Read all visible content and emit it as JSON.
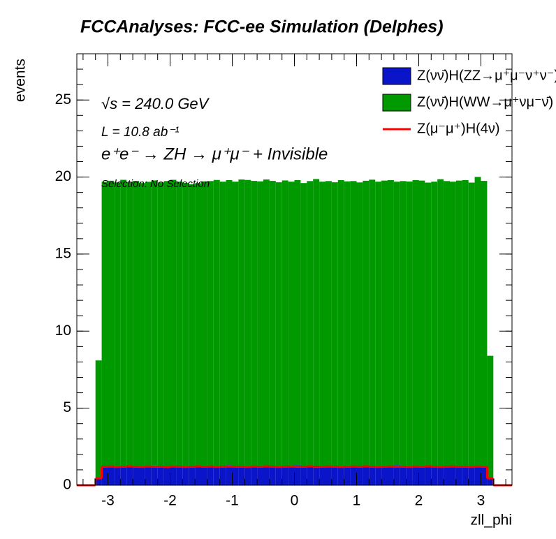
{
  "chart_data": {
    "type": "histogram",
    "title": "FCCAnalyses: FCC-ee Simulation (Delphes)",
    "xlabel": "zll_phi",
    "ylabel": "events",
    "annotations": [
      "√s = 240.0 GeV",
      "L = 10.8 ab⁻¹",
      "e⁺e⁻ → ZH → μ⁺μ⁻ + Invisible",
      "Selection: No Selection"
    ],
    "bins": [
      -3.5,
      -3.4,
      -3.3,
      -3.2,
      -3.1,
      -3.0,
      -2.9,
      -2.8,
      -2.7,
      -2.6,
      -2.5,
      -2.4,
      -2.3,
      -2.2,
      -2.1,
      -2.0,
      -1.9,
      -1.8,
      -1.7,
      -1.6,
      -1.5,
      -1.4,
      -1.3,
      -1.2,
      -1.1,
      -1.0,
      -0.9,
      -0.8,
      -0.7,
      -0.6,
      -0.5,
      -0.4,
      -0.3,
      -0.2,
      -0.1,
      0.0,
      0.1,
      0.2,
      0.3,
      0.4,
      0.5,
      0.6,
      0.7,
      0.8,
      0.9,
      1.0,
      1.1,
      1.2,
      1.3,
      1.4,
      1.5,
      1.6,
      1.7,
      1.8,
      1.9,
      2.0,
      2.1,
      2.2,
      2.3,
      2.4,
      2.5,
      2.6,
      2.7,
      2.8,
      2.9,
      3.0,
      3.1,
      3.2,
      3.3,
      3.4,
      3.5
    ],
    "series": [
      {
        "name": "Z(νν̄)H(ZZ→μ⁺μ⁻ν⁺ν⁻)",
        "color": "#0a14c8",
        "histtype": "stacked",
        "values": [
          0,
          0,
          0,
          0.5,
          1.24,
          1.26,
          1.25,
          1.27,
          1.23,
          1.25,
          1.26,
          1.24,
          1.28,
          1.25,
          1.24,
          1.27,
          1.25,
          1.26,
          1.23,
          1.25,
          1.27,
          1.24,
          1.26,
          1.25,
          1.3,
          1.25,
          1.24,
          1.26,
          1.25,
          1.27,
          1.24,
          1.25,
          1.26,
          1.23,
          1.25,
          1.3,
          1.26,
          1.24,
          1.27,
          1.25,
          1.24,
          1.26,
          1.25,
          1.27,
          1.24,
          1.25,
          1.26,
          1.23,
          1.25,
          1.27,
          1.25,
          1.3,
          1.24,
          1.26,
          1.25,
          1.27,
          1.24,
          1.25,
          1.26,
          1.24,
          1.25,
          1.27,
          1.25,
          1.24,
          1.26,
          1.25,
          0.5,
          0,
          0,
          0
        ]
      },
      {
        "name": "Z(νν̄)H(WW→μ⁺νμ⁻ν̄)",
        "color": "#009a00",
        "histtype": "stacked",
        "values": [
          0,
          0,
          0,
          7.6,
          18.45,
          18.5,
          18.4,
          18.55,
          18.45,
          18.5,
          18.35,
          18.45,
          18.5,
          18.4,
          18.5,
          18.55,
          18.45,
          18.35,
          18.3,
          18.35,
          18.45,
          18.5,
          18.55,
          18.45,
          18.5,
          18.45,
          18.6,
          18.55,
          18.5,
          18.45,
          18.6,
          18.5,
          18.4,
          18.55,
          18.45,
          18.5,
          18.35,
          18.5,
          18.6,
          18.45,
          18.5,
          18.4,
          18.55,
          18.45,
          18.5,
          18.4,
          18.5,
          18.6,
          18.45,
          18.5,
          18.55,
          18.4,
          18.5,
          18.45,
          18.55,
          18.5,
          18.4,
          18.45,
          18.6,
          18.5,
          18.45,
          18.5,
          18.55,
          18.4,
          18.75,
          18.5,
          7.9,
          0,
          0,
          0
        ]
      },
      {
        "name": "Z(μ⁻μ⁺)H(4ν)",
        "color": "#ff0000",
        "histtype": "step",
        "values": [
          0,
          0,
          0,
          0.45,
          1.2,
          1.21,
          1.19,
          1.2,
          1.22,
          1.2,
          1.19,
          1.21,
          1.2,
          1.2,
          1.18,
          1.21,
          1.2,
          1.19,
          1.2,
          1.22,
          1.2,
          1.21,
          1.19,
          1.2,
          1.21,
          1.2,
          1.2,
          1.19,
          1.21,
          1.2,
          1.22,
          1.2,
          1.19,
          1.2,
          1.21,
          1.2,
          1.2,
          1.22,
          1.19,
          1.2,
          1.21,
          1.2,
          1.19,
          1.2,
          1.21,
          1.2,
          1.22,
          1.2,
          1.19,
          1.2,
          1.21,
          1.2,
          1.2,
          1.19,
          1.21,
          1.2,
          1.22,
          1.2,
          1.19,
          1.2,
          1.21,
          1.2,
          1.2,
          1.19,
          1.21,
          1.2,
          0.45,
          0,
          0,
          0
        ]
      }
    ],
    "xlim": [
      -3.5,
      3.5
    ],
    "ylim": [
      0,
      28
    ],
    "xticks": [
      -3,
      -2,
      -1,
      0,
      1,
      2,
      3
    ],
    "yticks": [
      0,
      5,
      10,
      15,
      20,
      25
    ]
  }
}
